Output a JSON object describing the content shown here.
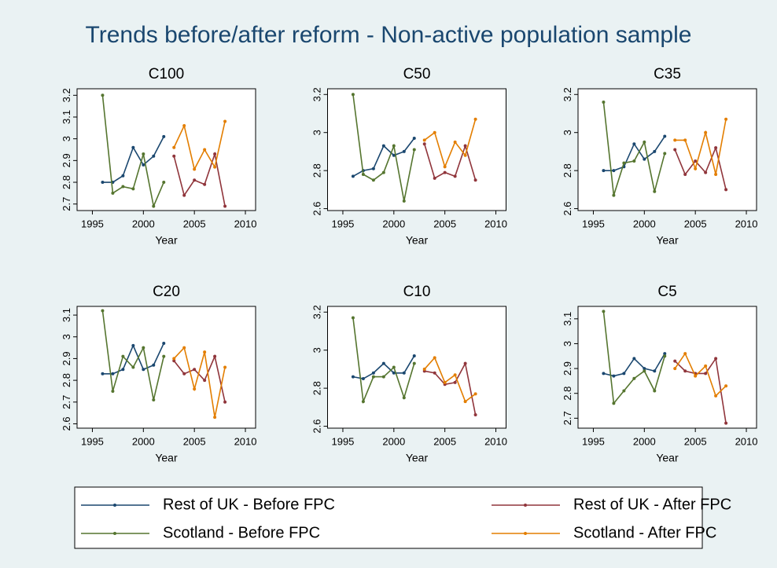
{
  "title": "Trends before/after reform - Non-active population sample",
  "series": [
    {
      "name": "Rest of UK - Before FPC",
      "color": "#1a476f"
    },
    {
      "name": "Rest of UK - After FPC",
      "color": "#90353b"
    },
    {
      "name": "Scotland - Before FPC",
      "color": "#55752f"
    },
    {
      "name": "Scotland - After FPC",
      "color": "#e37e00"
    }
  ],
  "chart_data": [
    {
      "type": "line",
      "title": "C100",
      "xlabel": "Year",
      "x": [
        1996,
        1997,
        1998,
        1999,
        2000,
        2001,
        2002,
        2003,
        2004,
        2005,
        2006,
        2007,
        2008
      ],
      "xlim": [
        1993.5,
        2011
      ],
      "xticks": [
        1995,
        2000,
        2005,
        2010
      ],
      "ylim": [
        2.67,
        3.23
      ],
      "yticks": [
        2.7,
        2.8,
        2.9,
        3,
        3.1,
        3.2
      ],
      "series": [
        {
          "values": [
            2.8,
            2.8,
            2.83,
            2.96,
            2.88,
            2.92,
            3.01,
            null,
            null,
            null,
            null,
            null,
            null
          ]
        },
        {
          "values": [
            null,
            null,
            null,
            null,
            null,
            null,
            null,
            2.92,
            2.74,
            2.81,
            2.79,
            2.93,
            2.69
          ]
        },
        {
          "values": [
            3.2,
            2.75,
            2.78,
            2.77,
            2.93,
            2.69,
            2.8,
            null,
            null,
            null,
            null,
            null,
            null
          ]
        },
        {
          "values": [
            null,
            null,
            null,
            null,
            null,
            null,
            null,
            2.96,
            3.06,
            2.86,
            2.95,
            2.87,
            3.08
          ]
        }
      ]
    },
    {
      "type": "line",
      "title": "C50",
      "xlabel": "Year",
      "x": [
        1996,
        1997,
        1998,
        1999,
        2000,
        2001,
        2002,
        2003,
        2004,
        2005,
        2006,
        2007,
        2008
      ],
      "xlim": [
        1993.5,
        2011
      ],
      "xticks": [
        1995,
        2000,
        2005,
        2010
      ],
      "ylim": [
        2.59,
        3.23
      ],
      "yticks": [
        2.6,
        2.8,
        3,
        3.2
      ],
      "series": [
        {
          "values": [
            2.77,
            2.8,
            2.81,
            2.93,
            2.88,
            2.9,
            2.97,
            null,
            null,
            null,
            null,
            null,
            null
          ]
        },
        {
          "values": [
            null,
            null,
            null,
            null,
            null,
            null,
            null,
            2.94,
            2.76,
            2.79,
            2.77,
            2.93,
            2.75
          ]
        },
        {
          "values": [
            3.2,
            2.78,
            2.75,
            2.79,
            2.93,
            2.64,
            2.91,
            null,
            null,
            null,
            null,
            null,
            null
          ]
        },
        {
          "values": [
            null,
            null,
            null,
            null,
            null,
            null,
            null,
            2.96,
            3.0,
            2.82,
            2.95,
            2.88,
            3.07
          ]
        }
      ]
    },
    {
      "type": "line",
      "title": "C35",
      "xlabel": "Year",
      "x": [
        1996,
        1997,
        1998,
        1999,
        2000,
        2001,
        2002,
        2003,
        2004,
        2005,
        2006,
        2007,
        2008
      ],
      "xlim": [
        1993.5,
        2011
      ],
      "xticks": [
        1995,
        2000,
        2005,
        2010
      ],
      "ylim": [
        2.59,
        3.23
      ],
      "yticks": [
        2.6,
        2.8,
        3,
        3.2
      ],
      "series": [
        {
          "values": [
            2.8,
            2.8,
            2.82,
            2.94,
            2.86,
            2.9,
            2.98,
            null,
            null,
            null,
            null,
            null,
            null
          ]
        },
        {
          "values": [
            null,
            null,
            null,
            null,
            null,
            null,
            null,
            2.91,
            2.78,
            2.85,
            2.79,
            2.92,
            2.7
          ]
        },
        {
          "values": [
            3.16,
            2.67,
            2.84,
            2.85,
            2.95,
            2.69,
            2.89,
            null,
            null,
            null,
            null,
            null,
            null
          ]
        },
        {
          "values": [
            null,
            null,
            null,
            null,
            null,
            null,
            null,
            2.96,
            2.96,
            2.81,
            3.0,
            2.78,
            3.07
          ]
        }
      ]
    },
    {
      "type": "line",
      "title": "C20",
      "xlabel": "Year",
      "x": [
        1996,
        1997,
        1998,
        1999,
        2000,
        2001,
        2002,
        2003,
        2004,
        2005,
        2006,
        2007,
        2008
      ],
      "xlim": [
        1993.5,
        2011
      ],
      "xticks": [
        1995,
        2000,
        2005,
        2010
      ],
      "ylim": [
        2.58,
        3.14
      ],
      "yticks": [
        2.6,
        2.7,
        2.8,
        2.9,
        3,
        3.1
      ],
      "series": [
        {
          "values": [
            2.83,
            2.83,
            2.85,
            2.96,
            2.85,
            2.87,
            2.97,
            null,
            null,
            null,
            null,
            null,
            null
          ]
        },
        {
          "values": [
            null,
            null,
            null,
            null,
            null,
            null,
            null,
            2.89,
            2.83,
            2.85,
            2.8,
            2.91,
            2.7
          ]
        },
        {
          "values": [
            3.12,
            2.75,
            2.91,
            2.86,
            2.95,
            2.71,
            2.91,
            null,
            null,
            null,
            null,
            null,
            null
          ]
        },
        {
          "values": [
            null,
            null,
            null,
            null,
            null,
            null,
            null,
            2.9,
            2.95,
            2.76,
            2.93,
            2.63,
            2.86
          ]
        }
      ]
    },
    {
      "type": "line",
      "title": "C10",
      "xlabel": "Year",
      "x": [
        1996,
        1997,
        1998,
        1999,
        2000,
        2001,
        2002,
        2003,
        2004,
        2005,
        2006,
        2007,
        2008
      ],
      "xlim": [
        1993.5,
        2011
      ],
      "xticks": [
        1995,
        2000,
        2005,
        2010
      ],
      "ylim": [
        2.59,
        3.23
      ],
      "yticks": [
        2.6,
        2.8,
        3,
        3.2
      ],
      "series": [
        {
          "values": [
            2.86,
            2.85,
            2.88,
            2.93,
            2.88,
            2.88,
            2.97,
            null,
            null,
            null,
            null,
            null,
            null
          ]
        },
        {
          "values": [
            null,
            null,
            null,
            null,
            null,
            null,
            null,
            2.89,
            2.88,
            2.82,
            2.83,
            2.93,
            2.66
          ]
        },
        {
          "values": [
            3.17,
            2.73,
            2.86,
            2.86,
            2.91,
            2.75,
            2.93,
            null,
            null,
            null,
            null,
            null,
            null
          ]
        },
        {
          "values": [
            null,
            null,
            null,
            null,
            null,
            null,
            null,
            2.9,
            2.96,
            2.83,
            2.87,
            2.73,
            2.77
          ]
        }
      ]
    },
    {
      "type": "line",
      "title": "C5",
      "xlabel": "Year",
      "x": [
        1996,
        1997,
        1998,
        1999,
        2000,
        2001,
        2002,
        2003,
        2004,
        2005,
        2006,
        2007,
        2008
      ],
      "xlim": [
        1993.5,
        2011
      ],
      "xticks": [
        1995,
        2000,
        2005,
        2010
      ],
      "ylim": [
        2.66,
        3.15
      ],
      "yticks": [
        2.7,
        2.8,
        2.9,
        3,
        3.1
      ],
      "series": [
        {
          "values": [
            2.88,
            2.87,
            2.88,
            2.94,
            2.9,
            2.89,
            2.96,
            null,
            null,
            null,
            null,
            null,
            null
          ]
        },
        {
          "values": [
            null,
            null,
            null,
            null,
            null,
            null,
            null,
            2.93,
            2.89,
            2.88,
            2.88,
            2.94,
            2.68
          ]
        },
        {
          "values": [
            3.13,
            2.76,
            2.81,
            2.86,
            2.89,
            2.81,
            2.95,
            null,
            null,
            null,
            null,
            null,
            null
          ]
        },
        {
          "values": [
            null,
            null,
            null,
            null,
            null,
            null,
            null,
            2.9,
            2.96,
            2.87,
            2.91,
            2.79,
            2.83
          ]
        }
      ]
    }
  ]
}
